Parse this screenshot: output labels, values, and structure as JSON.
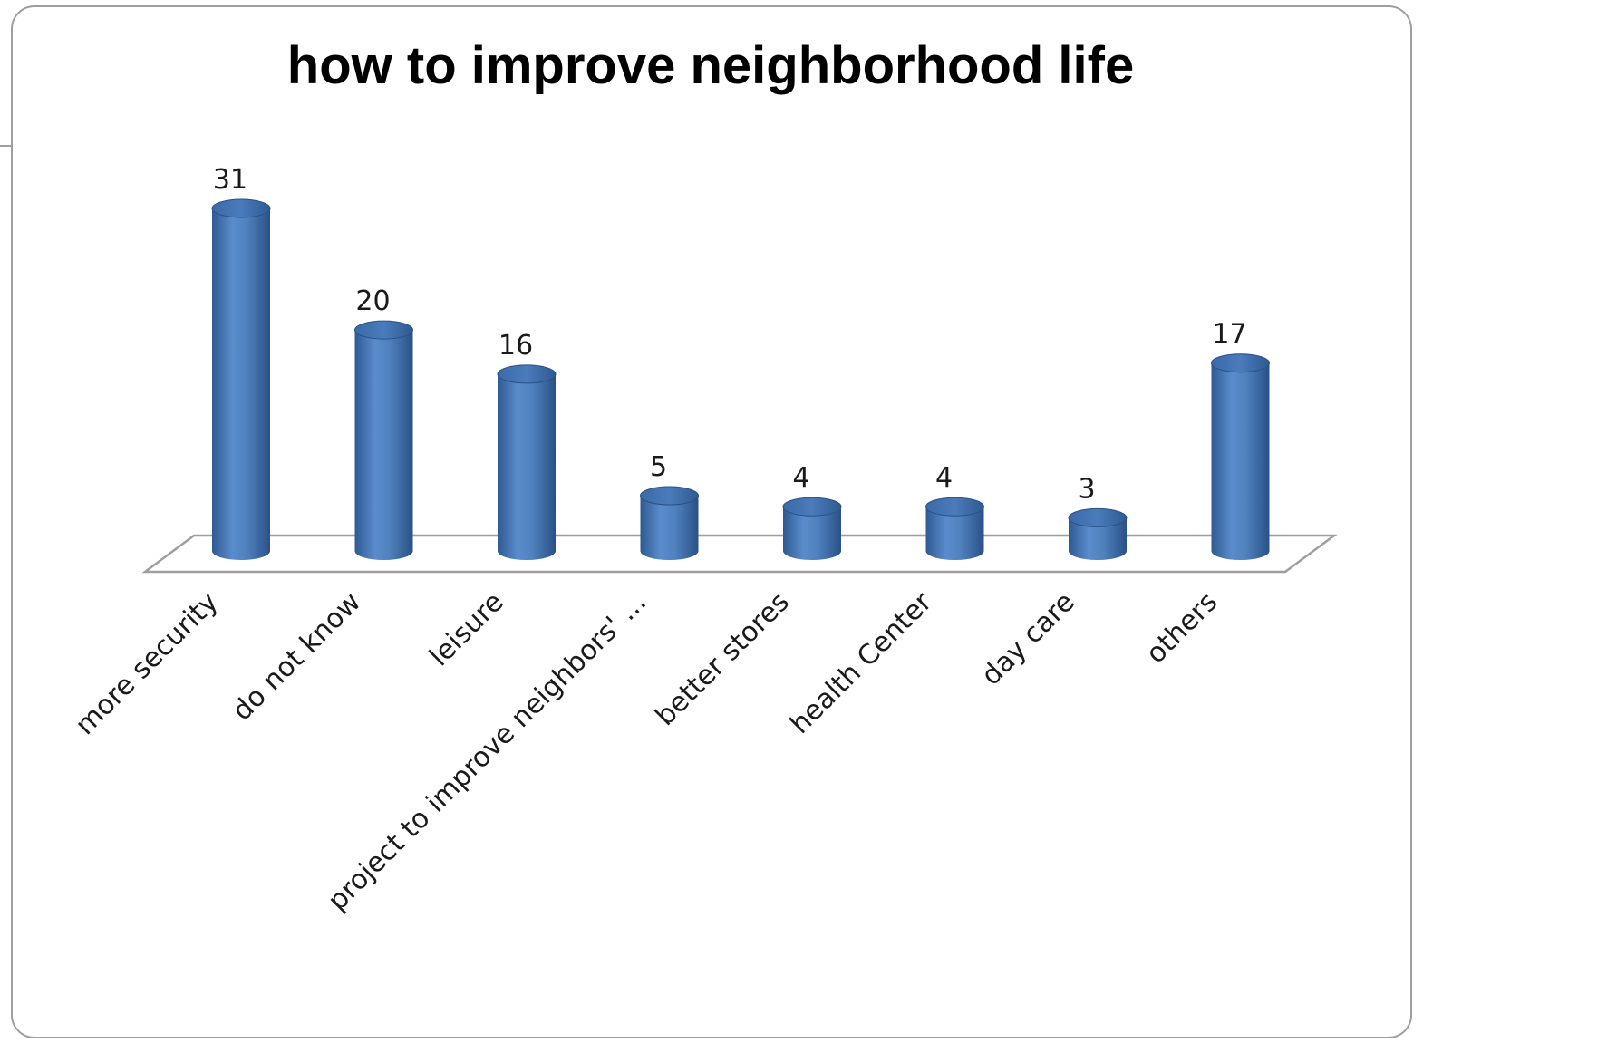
{
  "chart_data": {
    "type": "bar",
    "title": "how to improve neighborhood life",
    "xlabel": "",
    "ylabel": "",
    "categories": [
      "more security",
      "do not know",
      "leisure",
      "project to improve neighbors' ...",
      "better stores",
      "health Center",
      "day care",
      "others"
    ],
    "values": [
      31,
      20,
      16,
      5,
      4,
      4,
      3,
      17
    ],
    "ylim": [
      0,
      31
    ],
    "grid": false,
    "legend": "none",
    "style": "3d-cylinder",
    "colors": {
      "bar": "#4f81bd",
      "bar_dark": "#2f5a91",
      "bar_light": "#6d9bd6",
      "floor_stroke": "#9e9e9e",
      "frame_stroke": "#9e9e9e"
    }
  }
}
